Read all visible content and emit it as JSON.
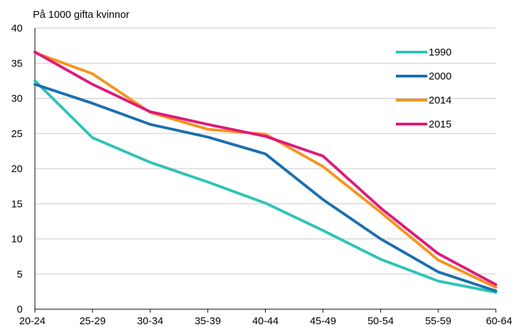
{
  "chart_data": {
    "type": "line",
    "title": "",
    "unit_label": "På 1000 gifta kvinnor",
    "xlabel": "",
    "ylabel": "",
    "categories": [
      "20-24",
      "25-29",
      "30-34",
      "35-39",
      "40-44",
      "45-49",
      "50-54",
      "55-59",
      "60-64"
    ],
    "ylim": [
      0,
      40
    ],
    "yticks": [
      0,
      5,
      10,
      15,
      20,
      25,
      30,
      35,
      40
    ],
    "grid": true,
    "legend_position": "top-right",
    "series": [
      {
        "name": "1990",
        "color": "#2ec4b6",
        "values": [
          32.5,
          24.4,
          20.9,
          18.1,
          15.1,
          11.2,
          7.1,
          4.0,
          2.4
        ]
      },
      {
        "name": "2000",
        "color": "#1a6faf",
        "values": [
          32.0,
          29.3,
          26.3,
          24.5,
          22.1,
          15.6,
          10.0,
          5.3,
          2.6
        ]
      },
      {
        "name": "2014",
        "color": "#f7941d",
        "values": [
          36.5,
          33.5,
          28.0,
          25.6,
          24.9,
          20.3,
          13.8,
          7.0,
          3.1
        ]
      },
      {
        "name": "2015",
        "color": "#e0197b",
        "values": [
          36.6,
          32.0,
          28.1,
          26.3,
          24.6,
          21.8,
          14.4,
          7.9,
          3.5
        ]
      }
    ]
  }
}
